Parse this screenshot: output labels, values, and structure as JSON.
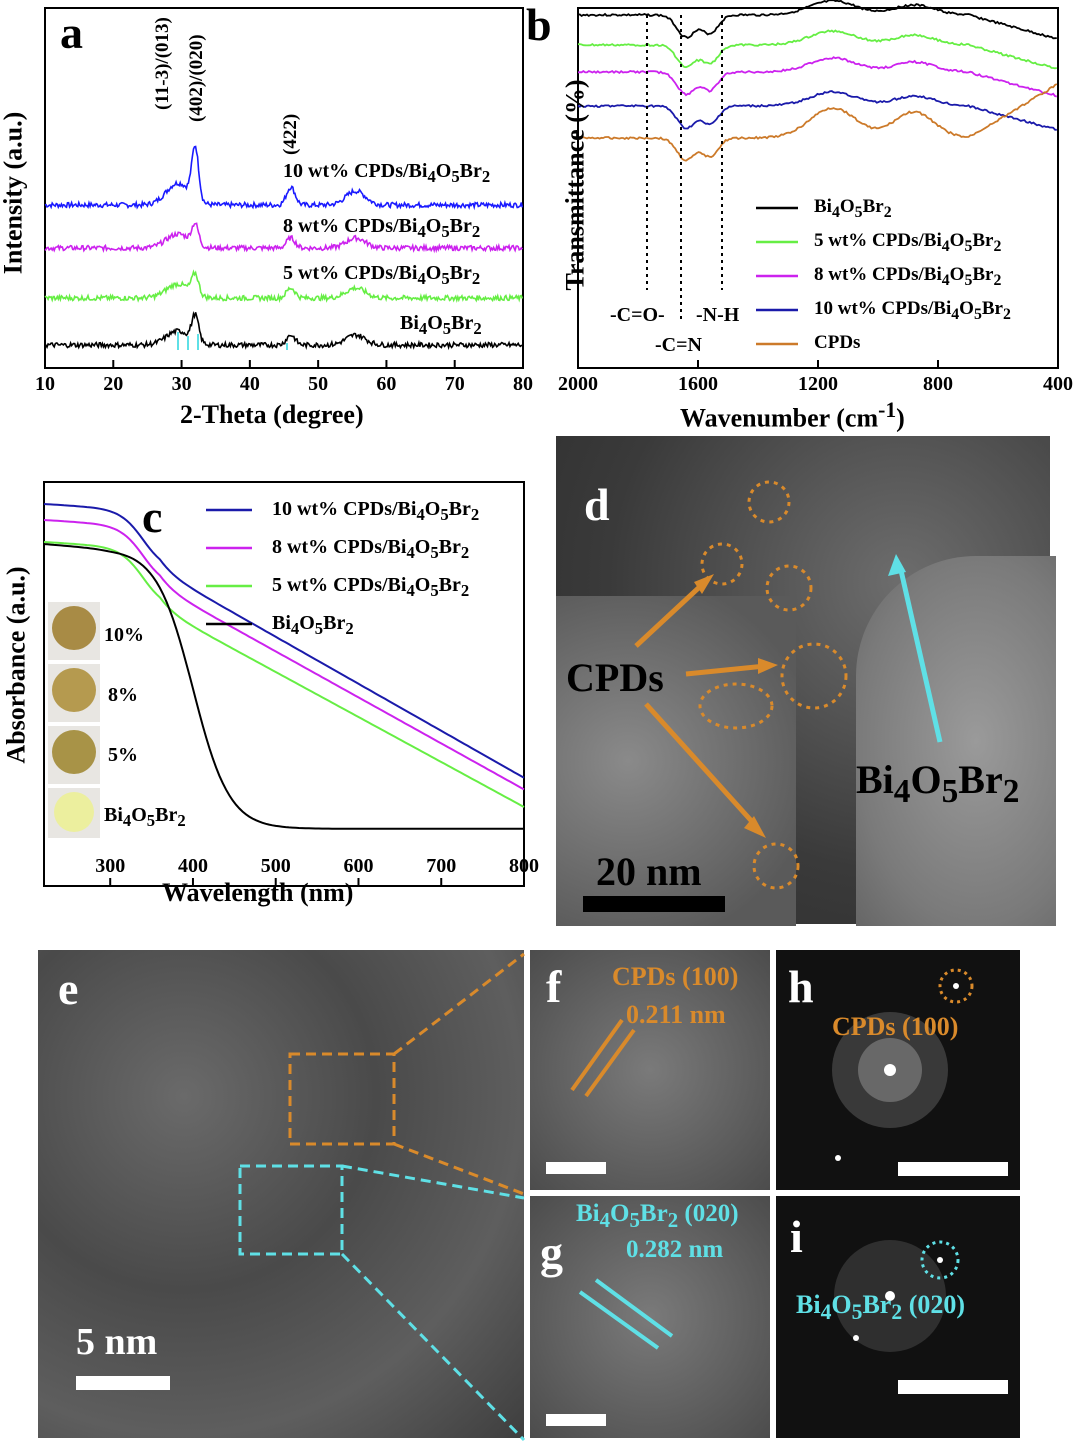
{
  "panels": {
    "a": {
      "letter": "a"
    },
    "b": {
      "letter": "b"
    },
    "c": {
      "letter": "c"
    },
    "d": {
      "letter": "d"
    },
    "e": {
      "letter": "e"
    },
    "f": {
      "letter": "f"
    },
    "g": {
      "letter": "g"
    },
    "h": {
      "letter": "h"
    },
    "i": {
      "letter": "i"
    }
  },
  "chart_data": [
    {
      "id": "a",
      "type": "line",
      "title": "",
      "xlabel": "2-Theta (degree)",
      "ylabel": "Intensity (a.u.)",
      "xlim": [
        10,
        80
      ],
      "xticks": [
        "10",
        "20",
        "30",
        "40",
        "50",
        "60",
        "70",
        "80"
      ],
      "peak_labels": [
        "(11-3)/(013)",
        "(402)/(020)",
        "(422)"
      ],
      "series": [
        {
          "name": "10 wt% CPDs/Bi4O5Br2",
          "color": "#1a1aff",
          "peaks": [
            29.5,
            32.0,
            46.0,
            55.5
          ]
        },
        {
          "name": "8 wt% CPDs/Bi4O5Br2",
          "color": "#cc22ee",
          "peaks": [
            29.5,
            32.0,
            46.0,
            55.5
          ]
        },
        {
          "name": "5 wt% CPDs/Bi4O5Br2",
          "color": "#66ee44",
          "peaks": [
            29.5,
            32.0,
            46.0,
            55.5
          ]
        },
        {
          "name": "Bi4O5Br2",
          "color": "#000000",
          "peaks": [
            29.5,
            32.0,
            46.0,
            55.5
          ]
        }
      ]
    },
    {
      "id": "b",
      "type": "line",
      "xlabel": "Wavenumber (cm-1)",
      "ylabel": "Transmittance (%)",
      "xlim": [
        2000,
        400
      ],
      "xticks": [
        "2000",
        "1600",
        "1200",
        "800",
        "400"
      ],
      "bond_labels": [
        "-C=O-",
        "-C=N",
        "-N-H"
      ],
      "series": [
        {
          "name": "Bi4O5Br2",
          "color": "#000000"
        },
        {
          "name": "5 wt% CPDs/Bi4O5Br2",
          "color": "#66ee44"
        },
        {
          "name": "8 wt% CPDs/Bi4O5Br2",
          "color": "#cc22ee"
        },
        {
          "name": "10 wt% CPDs/Bi4O5Br2",
          "color": "#1a1aaa"
        },
        {
          "name": "CPDs",
          "color": "#cc7a2a"
        }
      ]
    },
    {
      "id": "c",
      "type": "line",
      "xlabel": "Wavelength (nm)",
      "ylabel": "Absorbance (a.u.)",
      "xlim": [
        220,
        800
      ],
      "xticks": [
        "300",
        "400",
        "500",
        "600",
        "700",
        "800"
      ],
      "series": [
        {
          "name": "10 wt% CPDs/Bi4O5Br2",
          "color": "#1a1aaa"
        },
        {
          "name": "8 wt% CPDs/Bi4O5Br2",
          "color": "#cc22ee"
        },
        {
          "name": "5 wt% CPDs/Bi4O5Br2",
          "color": "#66ee44"
        },
        {
          "name": "Bi4O5Br2",
          "color": "#000000"
        }
      ],
      "photo_labels": [
        "10%",
        "8%",
        "5%",
        "Bi4O5Br2"
      ]
    }
  ],
  "tem": {
    "d_cpds": "CPDs",
    "d_bi": "Bi4O5Br2",
    "d_scale": "20 nm",
    "e_scale": "5 nm",
    "f_label": "CPDs (100)",
    "f_spacing": "0.211 nm",
    "g_label": "Bi4O5Br2 (020)",
    "g_spacing": "0.282 nm",
    "h_label": "CPDs (100)",
    "i_label": "Bi4O5Br2 (020)"
  },
  "colors": {
    "orange": "#d98a2b",
    "cyan": "#5fe0e6"
  }
}
